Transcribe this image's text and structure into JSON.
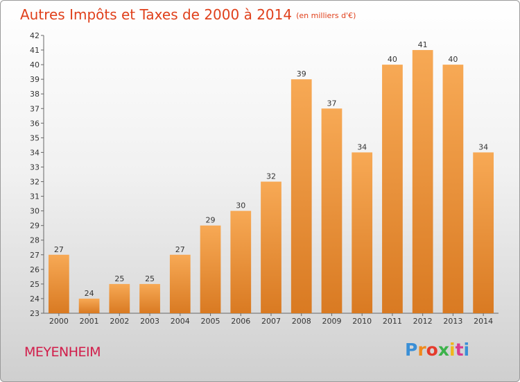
{
  "header": {
    "title": "Autres Impôts et Taxes de 2000 à 2014",
    "subtitle": "(en milliers d'€)"
  },
  "footer": {
    "town": "MEYENHEIM",
    "logo_letters": [
      "P",
      "r",
      "o",
      "x",
      "i",
      "t",
      "i"
    ],
    "logo_colors": [
      "#3a8fd6",
      "#f08a1c",
      "#e53b2c",
      "#3bb24a",
      "#f0b61c",
      "#d83a8f",
      "#3a8fd6"
    ]
  },
  "chart_data": {
    "type": "bar",
    "categories": [
      "2000",
      "2001",
      "2002",
      "2003",
      "2004",
      "2005",
      "2006",
      "2007",
      "2008",
      "2009",
      "2010",
      "2011",
      "2012",
      "2013",
      "2014"
    ],
    "values": [
      27,
      24,
      25,
      25,
      27,
      29,
      30,
      32,
      39,
      37,
      34,
      40,
      41,
      40,
      34
    ],
    "title": "Autres Impôts et Taxes de 2000 à 2014",
    "ylim": [
      23,
      42
    ],
    "yticks": [
      23,
      24,
      25,
      26,
      27,
      28,
      29,
      30,
      31,
      32,
      33,
      34,
      35,
      36,
      37,
      38,
      39,
      40,
      41,
      42
    ],
    "grid": false,
    "bar_color_top": "#f7a955",
    "bar_color_bottom": "#d97a22"
  }
}
